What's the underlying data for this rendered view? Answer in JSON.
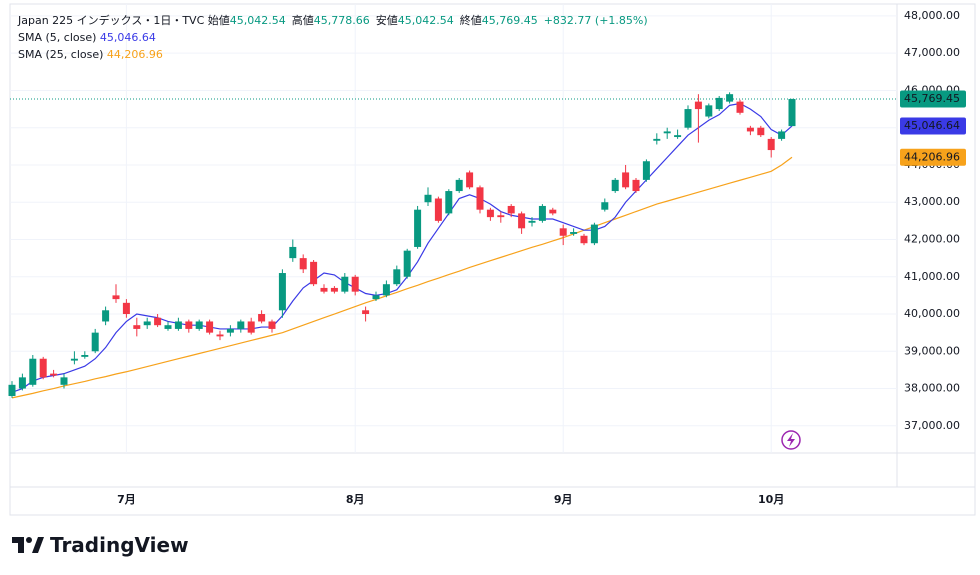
{
  "chart_data": {
    "type": "candlestick",
    "title": "Japan 225 インデックス・1日・TVC",
    "ohlc_legend": [
      {
        "name": "始値",
        "value": 45042.54,
        "label": "45,042.54"
      },
      {
        "name": "高値",
        "value": 45778.66,
        "label": "45,778.66"
      },
      {
        "name": "安値",
        "value": 45042.54,
        "label": "45,042.54"
      },
      {
        "name": "終値",
        "value": 45769.45,
        "label": "45,769.45"
      }
    ],
    "change": {
      "value": 832.77,
      "percent": 1.85,
      "label": "+832.77 (+1.85%)"
    },
    "up_color": "#089981",
    "down_color": "#f23645",
    "categories": [
      null,
      null,
      null,
      null,
      null,
      null,
      null,
      null,
      null,
      null,
      null,
      "7月",
      null,
      null,
      null,
      null,
      null,
      null,
      null,
      null,
      null,
      null,
      null,
      null,
      null,
      null,
      null,
      null,
      null,
      null,
      null,
      null,
      null,
      "8月",
      null,
      null,
      null,
      null,
      null,
      null,
      null,
      null,
      null,
      null,
      null,
      null,
      null,
      null,
      null,
      null,
      null,
      null,
      null,
      "9月",
      null,
      null,
      null,
      null,
      null,
      null,
      null,
      null,
      null,
      null,
      null,
      null,
      null,
      null,
      null,
      null,
      null,
      null,
      null,
      "10月",
      null,
      null
    ],
    "open": [
      37800,
      38000,
      38100,
      38800,
      38400,
      38100,
      38750,
      38850,
      39000,
      39800,
      40500,
      40300,
      39700,
      39700,
      39900,
      39600,
      39600,
      39800,
      39600,
      39800,
      39450,
      39500,
      39600,
      39800,
      40000,
      39800,
      40100,
      41500,
      41500,
      41400,
      40700,
      40700,
      40600,
      41000,
      40100,
      40400,
      40500,
      40800,
      41000,
      41800,
      43000,
      43100,
      42700,
      43300,
      43800,
      43400,
      42800,
      42650,
      42900,
      42700,
      42450,
      42500,
      42800,
      42300,
      42150,
      42100,
      41900,
      42800,
      43300,
      43800,
      43600,
      43600,
      44650,
      44850,
      44750,
      45000,
      45700,
      45300,
      45500,
      45700,
      45700,
      45000,
      45000,
      44700,
      44700,
      45042.54
    ],
    "high": [
      38200,
      38400,
      38900,
      38850,
      38500,
      38400,
      39000,
      39000,
      39600,
      40200,
      40800,
      40400,
      39900,
      39900,
      40000,
      39800,
      39900,
      39850,
      39850,
      39850,
      39550,
      39700,
      39850,
      39900,
      40100,
      39850,
      41200,
      42000,
      41600,
      41450,
      40800,
      40750,
      41100,
      41050,
      40200,
      40600,
      40900,
      41300,
      41750,
      42900,
      43400,
      43150,
      43350,
      43650,
      43850,
      43450,
      42850,
      42750,
      42950,
      42750,
      42600,
      42950,
      42850,
      42400,
      42300,
      42150,
      42450,
      43100,
      43650,
      44000,
      43650,
      44150,
      44850,
      45000,
      44950,
      45600,
      45900,
      45650,
      45850,
      45950,
      45750,
      45050,
      45050,
      44750,
      44950,
      45778.66
    ],
    "low": [
      37750,
      37950,
      38050,
      38250,
      38300,
      38000,
      38650,
      38800,
      38950,
      39700,
      40300,
      39900,
      39400,
      39600,
      39650,
      39550,
      39550,
      39500,
      39550,
      39450,
      39300,
      39400,
      39500,
      39450,
      39750,
      39500,
      39900,
      41400,
      41100,
      40750,
      40550,
      40550,
      40550,
      40500,
      39800,
      40350,
      40450,
      40750,
      40950,
      41750,
      42900,
      42450,
      42650,
      43250,
      43350,
      42700,
      42500,
      42450,
      42600,
      42150,
      42350,
      42450,
      42650,
      41850,
      42100,
      41850,
      41850,
      42750,
      43250,
      43350,
      43250,
      43550,
      44550,
      44700,
      44700,
      44950,
      44600,
      45250,
      45450,
      45650,
      45350,
      44800,
      44750,
      44200,
      44650,
      45042.54
    ],
    "close": [
      38100,
      38300,
      38800,
      38300,
      38350,
      38300,
      38800,
      38900,
      39500,
      40100,
      40400,
      40000,
      39600,
      39800,
      39700,
      39700,
      39800,
      39600,
      39800,
      39500,
      39400,
      39600,
      39800,
      39500,
      39800,
      39600,
      41100,
      41800,
      41200,
      40800,
      40600,
      40600,
      41000,
      40600,
      40000,
      40500,
      40800,
      41200,
      41700,
      42800,
      43200,
      42500,
      43300,
      43600,
      43400,
      42800,
      42600,
      42600,
      42700,
      42300,
      42500,
      42900,
      42700,
      42100,
      42200,
      41900,
      42400,
      43000,
      43600,
      43400,
      43300,
      44100,
      44700,
      44900,
      44800,
      45500,
      45500,
      45600,
      45800,
      45900,
      45400,
      44900,
      44800,
      44400,
      44900,
      45769.45
    ],
    "series": [
      {
        "name": "SMA (25, close)",
        "color": "#f7a21b",
        "last_value_label": "44,206.96",
        "values": [
          37750,
          37810,
          37870,
          37940,
          38000,
          38070,
          38130,
          38190,
          38260,
          38320,
          38390,
          38450,
          38520,
          38590,
          38660,
          38730,
          38800,
          38870,
          38940,
          39010,
          39080,
          39150,
          39220,
          39290,
          39360,
          39430,
          39500,
          39600,
          39700,
          39800,
          39900,
          40000,
          40100,
          40200,
          40300,
          40390,
          40490,
          40580,
          40680,
          40770,
          40870,
          40960,
          41060,
          41150,
          41250,
          41340,
          41430,
          41520,
          41610,
          41700,
          41790,
          41870,
          41960,
          42050,
          42150,
          42250,
          42350,
          42450,
          42550,
          42650,
          42750,
          42850,
          42950,
          43030,
          43110,
          43190,
          43270,
          43350,
          43430,
          43510,
          43590,
          43670,
          43750,
          43830,
          44000,
          44206.96
        ]
      },
      {
        "name": "SMA (5, close)",
        "color": "#3a3ae6",
        "last_value_label": "45,046.64",
        "values": [
          37900,
          38000,
          38200,
          38300,
          38350,
          38400,
          38500,
          38600,
          38800,
          39100,
          39500,
          39800,
          40000,
          39950,
          39900,
          39800,
          39750,
          39700,
          39700,
          39650,
          39600,
          39600,
          39600,
          39600,
          39650,
          39650,
          39950,
          40350,
          40700,
          40900,
          41100,
          41050,
          40850,
          40700,
          40550,
          40500,
          40550,
          40650,
          41000,
          41400,
          41900,
          42300,
          42700,
          43100,
          43200,
          43100,
          42950,
          42750,
          42650,
          42600,
          42550,
          42550,
          42550,
          42450,
          42350,
          42250,
          42250,
          42350,
          42600,
          43000,
          43300,
          43600,
          43900,
          44200,
          44500,
          44800,
          45000,
          45200,
          45350,
          45600,
          45650,
          45500,
          45300,
          44950,
          44800,
          45046.64
        ]
      }
    ],
    "ylim": [
      36270,
      48320
    ],
    "yticks": [
      {
        "value": 37000,
        "label": "37,000.00"
      },
      {
        "value": 38000,
        "label": "38,000.00"
      },
      {
        "value": 39000,
        "label": "39,000.00"
      },
      {
        "value": 40000,
        "label": "40,000.00"
      },
      {
        "value": 41000,
        "label": "41,000.00"
      },
      {
        "value": 42000,
        "label": "42,000.00"
      },
      {
        "value": 43000,
        "label": "43,000.00"
      },
      {
        "value": 44000,
        "label": "44,000.00"
      },
      {
        "value": 45000,
        "label": "45,000.00"
      },
      {
        "value": 46000,
        "label": "46,000.00"
      },
      {
        "value": 47000,
        "label": "47,000.00"
      },
      {
        "value": 48000,
        "label": "48,000.00"
      }
    ],
    "grid": true
  },
  "brand": "TradingView"
}
